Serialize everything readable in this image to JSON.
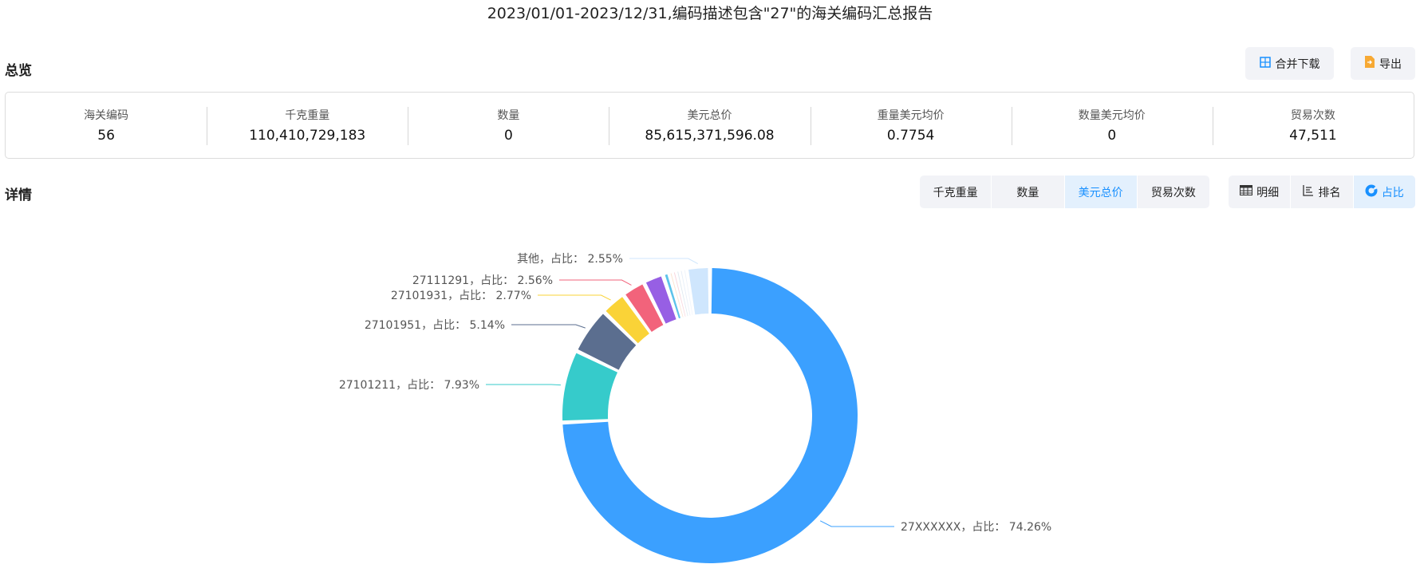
{
  "title": "2023/01/01-2023/12/31,编码描述包含\"27\"的海关编码汇总报告",
  "overview": {
    "heading": "总览",
    "merge_download_label": "合并下载",
    "export_label": "导出",
    "metrics": [
      {
        "label": "海关编码",
        "value": "56"
      },
      {
        "label": "千克重量",
        "value": "110,410,729,183"
      },
      {
        "label": "数量",
        "value": "0"
      },
      {
        "label": "美元总价",
        "value": "85,615,371,596.08"
      },
      {
        "label": "重量美元均价",
        "value": "0.7754"
      },
      {
        "label": "数量美元均价",
        "value": "0"
      },
      {
        "label": "贸易次数",
        "value": "47,511"
      }
    ]
  },
  "details": {
    "heading": "详情",
    "metric_tabs": [
      "千克重量",
      "数量",
      "美元总价",
      "贸易次数"
    ],
    "active_metric": "美元总价",
    "view_tabs": [
      "明细",
      "排名",
      "占比"
    ],
    "active_view": "占比"
  },
  "chart_data": {
    "type": "pie",
    "donut": true,
    "label_template": "{name}，占比： {pct}%",
    "slices": [
      {
        "name": "27XXXXXX",
        "value": 74.26,
        "color": "#3ba0ff",
        "labeled": true
      },
      {
        "name": "27101211",
        "value": 7.93,
        "color": "#36cbcb",
        "labeled": true
      },
      {
        "name": "27101951",
        "value": 5.14,
        "color": "#5b6e8f",
        "labeled": true
      },
      {
        "name": "27101931",
        "value": 2.77,
        "color": "#fad337",
        "labeled": true
      },
      {
        "name": "27111291",
        "value": 2.56,
        "color": "#f2637b",
        "labeled": true
      },
      {
        "name": "",
        "value": 2.2,
        "color": "#975fe4",
        "labeled": false
      },
      {
        "name": "",
        "value": 0.7,
        "color": "#5dc3ea",
        "labeled": false
      },
      {
        "name": "",
        "value": 0.38,
        "color": "#fbe3d0",
        "labeled": false
      },
      {
        "name": "",
        "value": 0.38,
        "color": "#f7d4dc",
        "labeled": false
      },
      {
        "name": "",
        "value": 0.38,
        "color": "#dde8f0",
        "labeled": false
      },
      {
        "name": "",
        "value": 0.38,
        "color": "#e6eef8",
        "labeled": false
      },
      {
        "name": "",
        "value": 0.38,
        "color": "#eef3fb",
        "labeled": false
      },
      {
        "name": "其他",
        "value": 2.55,
        "color": "#cfe6fd",
        "labeled": true
      }
    ],
    "labels": [
      "27XXXXXX，占比： 74.26%",
      "27101211，占比： 7.93%",
      "27101951，占比： 5.14%",
      "27101931，占比： 2.77%",
      "27111291，占比： 2.56%",
      "其他，占比： 2.55%"
    ]
  }
}
